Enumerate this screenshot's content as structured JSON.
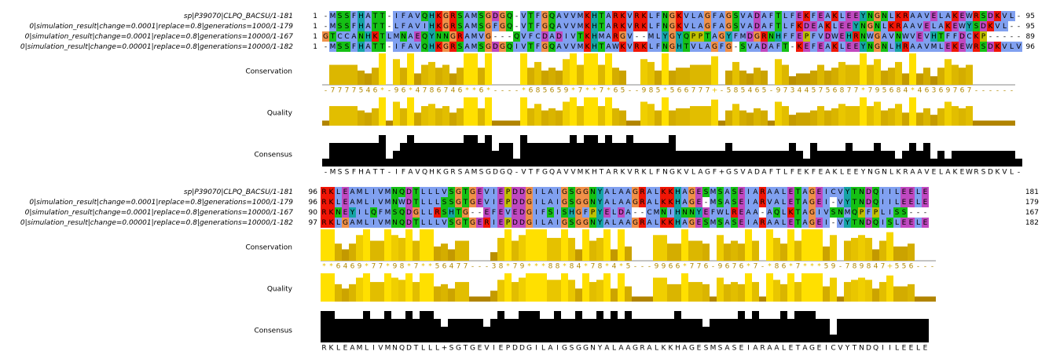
{
  "annotation_labels": {
    "conservation": "Conservation",
    "quality": "Quality",
    "consensus": "Consensus"
  },
  "names": [
    "sp|P39070|CLPQ_BACSU/1-181",
    "0|simulation_result|change=0.0001|replace=0.8|generations=1000/1-179",
    "0|simulation_result|change=0.0001|replace=0.8|generations=10000/1-167",
    "0|simulation_result|change=0.00001|replace=0.8|generations=10000/1-182"
  ],
  "blocks": [
    {
      "rows": [
        {
          "start": 1,
          "end": 95,
          "sequence": "-MSSFHATT-IFAVQHKGRSAMSGDGQ-VTFGQAVVMKHTARKVRKLFNGKVLAGFAGSVADAFTLFEKFEAKLEEYNGNLKRAAVELAKEWRSDKVL-"
        },
        {
          "start": 1,
          "end": 95,
          "sequence": "-MSSFHATT-LFAVIHKGRSAMSGFGQ-VTFGQAVVMKHTARKVRKLFNGKVLAGFAGSVADAFTLFKDEAKLEEYNGNLKRAAVELAKEWYSDKVL--"
        },
        {
          "start": 1,
          "end": 89,
          "sequence": "GTCCANHKTLMNAEQYNNGRAMVG---QVFCDADIVTKHMARGV--MLYGYQPPTAGYFMDGRNHFFEPFVDWEHRNWGAVNWVEVHTFFDCKP-----"
        },
        {
          "start": 1,
          "end": 96,
          "sequence": "-MSSFHATT-IFAVQHKGRSAMSGDGQIVTFGQAVVMKHTAWKVRKLFNGHTVLAGFG-SVADAFT-KEFEAKLEEYNGNLHRAAVMLEKEWRSDKVLV"
        }
      ],
      "conservation": "-7777546*-96*4786746**6*----*685659*7**7*65--985*566777+-585465-973445756877*795684*46369767------",
      "consensus": "-MSSFHATT-IFAVQHKGRSAMSGDGQ-VTFGQAVVMKHTARKVRKLFNGKVLAGF+GSVADAFTLFEKFEAKLEEYNGNLKRAAVELAKEWRSDKVL-"
    },
    {
      "rows": [
        {
          "start": 96,
          "end": 181,
          "sequence": "RKLEAMLIVMNQDTLLLVSGTGEVIEPDDGILAIGSGGNYALAAGRALKKHAGESMSASEIARAALETAGEICVYTNDQIILEELE"
        },
        {
          "start": 96,
          "end": 179,
          "sequence": "RKLEAMLIVMNWDTLLLSSGTGEVIEPDDGILAIGSGGNYALAAGRALKKHAGE-MSASEIARVALETAGEI-VYTNDQIILEELE"
        },
        {
          "start": 90,
          "end": 167,
          "sequence": "RKNEYILQFMSQDGLLRSHTG--EFEVEDGIFSISHGFPYELDA--CMNIHNNYEFWLREAA-AQLKTAGIVSNMQPFPLISS---"
        },
        {
          "start": 97,
          "end": 182,
          "sequence": "RKLGAMLIVMNQDTLLLVSGTGERIEPDDGILAIGSGGNYALAAGRALKKHAGESMSASEIARAALETAGEI-VYTNDQISLEELE"
        }
      ],
      "conservation": "**6469*77*98*7**56477---38*79***88*84*78*4*5---9966*776-9676*7-*86*7***59-789847+556---",
      "consensus": "RKLEAMLIVMNQDTLLL+SGTGEVIEPDDGILAIGSGGNYALAAGRALKKHAGESMSASEIARAALETAGEICVYTNDQIILEELE"
    }
  ]
}
